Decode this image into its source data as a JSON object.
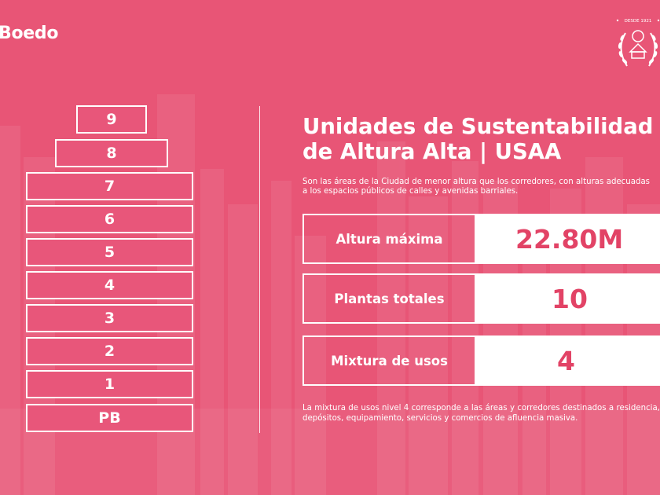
{
  "brand": {
    "name": "Boedo"
  },
  "seal": {
    "text": "DESDE 1921"
  },
  "building": {
    "floors": [
      "9",
      "8",
      "7",
      "6",
      "5",
      "4",
      "3",
      "2",
      "1",
      "PB"
    ]
  },
  "panel": {
    "title_line1": "Unidades de Sustentabilidad",
    "title_line2": "de Altura Alta | USAA",
    "intro": "Son las áreas de la Ciudad de menor altura que los corredores, con alturas adecuadas a los espacios públicos de calles y avenidas barriales.",
    "stats": [
      {
        "label": "Altura máxima",
        "value": "22.80M"
      },
      {
        "label": "Plantas totales",
        "value": "10"
      },
      {
        "label": "Mixtura de usos",
        "value": "4"
      }
    ],
    "note": "La mixtura de usos nivel 4 corresponde a las áreas y corredores destinados a residencia, depósitos, equipamiento, servicios y comercios de afluencia masiva."
  },
  "colors": {
    "background": "#e85576",
    "accent": "#e24366",
    "foreground": "#ffffff"
  }
}
